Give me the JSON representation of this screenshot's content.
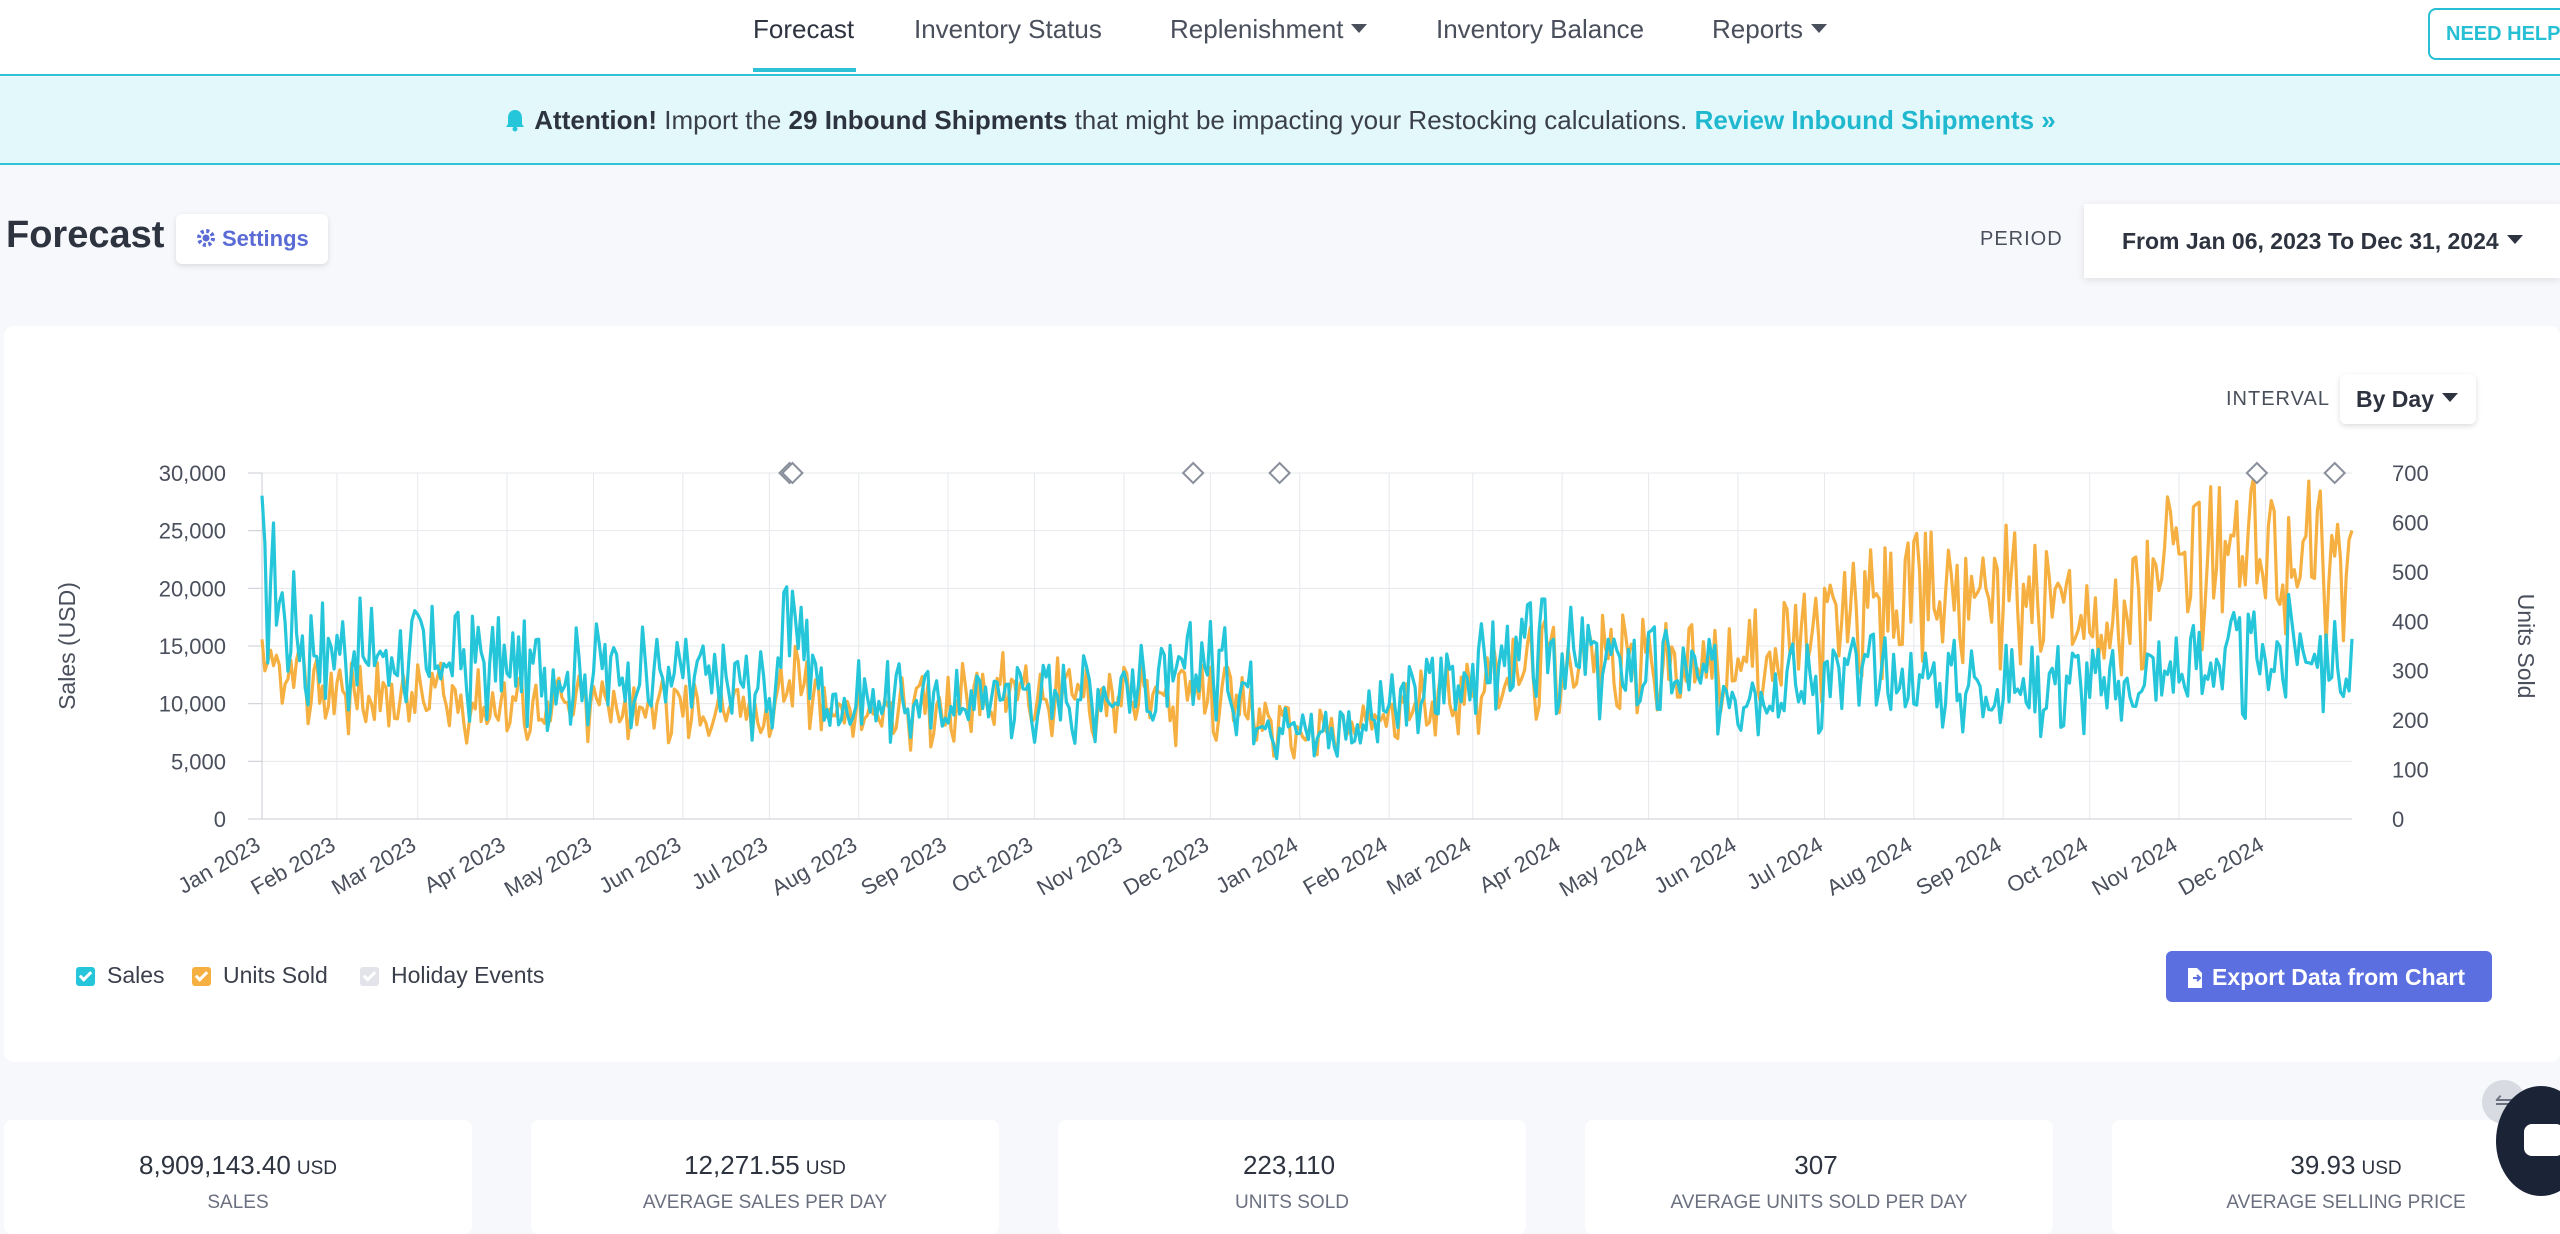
{
  "nav": {
    "items": [
      {
        "label": "Forecast",
        "dropdown": false
      },
      {
        "label": "Inventory Status",
        "dropdown": false
      },
      {
        "label": "Replenishment",
        "dropdown": true
      },
      {
        "label": "Inventory Balance",
        "dropdown": false
      },
      {
        "label": "Reports",
        "dropdown": true
      }
    ],
    "need_help": "NEED HELP?"
  },
  "banner": {
    "attention": "Attention!",
    "text1": "Import the",
    "count": "29 Inbound Shipments",
    "text2": "that might be impacting your Restocking calculations.",
    "link": "Review Inbound Shipments »",
    "icon": "bell-icon"
  },
  "header": {
    "title": "Forecast",
    "settings_label": "Settings",
    "period_label": "PERIOD",
    "period_value": "From Jan 06, 2023 To Dec 31, 2024"
  },
  "chart_controls": {
    "interval_label": "INTERVAL",
    "interval_value": "By Day"
  },
  "legend": [
    {
      "label": "Sales",
      "color": "#26c6da",
      "checked": true
    },
    {
      "label": "Units Sold",
      "color": "#f5b041",
      "checked": true
    },
    {
      "label": "Holiday Events",
      "color": "#d8dbe0",
      "checked": true
    }
  ],
  "export_label": "Export Data from Chart",
  "stats": [
    {
      "value": "8,909,143.40",
      "unit": "USD",
      "label": "SALES"
    },
    {
      "value": "12,271.55",
      "unit": "USD",
      "label": "AVERAGE SALES PER DAY"
    },
    {
      "value": "223,110",
      "unit": "",
      "label": "UNITS SOLD"
    },
    {
      "value": "307",
      "unit": "",
      "label": "AVERAGE UNITS SOLD PER DAY"
    },
    {
      "value": "39.93",
      "unit": "USD",
      "label": "AVERAGE SELLING PRICE"
    }
  ],
  "colors": {
    "accent": "#26c6da",
    "units": "#f5b041",
    "button": "#5b6fe0",
    "settings": "#5b6bd6"
  },
  "chart_data": {
    "type": "line",
    "x_start": "2023-01-06",
    "x_end": "2024-12-31",
    "x_ticks": [
      "Jan 2023",
      "Feb 2023",
      "Mar 2023",
      "Apr 2023",
      "May 2023",
      "Jun 2023",
      "Jul 2023",
      "Aug 2023",
      "Sep 2023",
      "Oct 2023",
      "Nov 2023",
      "Dec 2023",
      "Jan 2024",
      "Feb 2024",
      "Mar 2024",
      "Apr 2024",
      "May 2024",
      "Jun 2024",
      "Jul 2024",
      "Aug 2024",
      "Sep 2024",
      "Oct 2024",
      "Nov 2024",
      "Dec 2024"
    ],
    "ylabel": "Sales (USD)",
    "ylim": [
      0,
      30000
    ],
    "y_ticks": [
      "0",
      "5,000",
      "10,000",
      "15,000",
      "20,000",
      "25,000",
      "30,000"
    ],
    "y2label": "Units Sold",
    "y2lim": [
      0,
      700
    ],
    "y2_ticks": [
      "0",
      "100",
      "200",
      "300",
      "400",
      "500",
      "600",
      "700"
    ],
    "grid": true,
    "legend_position": "bottom-left",
    "holiday_events": [
      "2023-07-08",
      "2023-07-09",
      "2023-11-25",
      "2023-12-25",
      "2024-11-28",
      "2024-12-25"
    ],
    "series": [
      {
        "name": "Sales",
        "axis": "left",
        "x": [
          "2023-01-06",
          "2023-01-20",
          "2023-02-05",
          "2023-02-20",
          "2023-03-05",
          "2023-03-20",
          "2023-04-05",
          "2023-04-20",
          "2023-05-05",
          "2023-05-20",
          "2023-06-05",
          "2023-06-20",
          "2023-07-01",
          "2023-07-10",
          "2023-07-20",
          "2023-08-05",
          "2023-08-20",
          "2023-09-05",
          "2023-09-20",
          "2023-10-05",
          "2023-10-20",
          "2023-11-05",
          "2023-11-20",
          "2023-11-27",
          "2023-12-10",
          "2023-12-25",
          "2024-01-10",
          "2024-01-25",
          "2024-02-10",
          "2024-02-25",
          "2024-03-10",
          "2024-03-25",
          "2024-04-10",
          "2024-04-25",
          "2024-05-10",
          "2024-05-25",
          "2024-06-10",
          "2024-06-25",
          "2024-07-10",
          "2024-07-25",
          "2024-08-10",
          "2024-08-25",
          "2024-09-10",
          "2024-09-25",
          "2024-10-10",
          "2024-10-25",
          "2024-11-10",
          "2024-11-25",
          "2024-12-05",
          "2024-12-15",
          "2024-12-31"
        ],
        "values": [
          22000,
          15000,
          14500,
          14000,
          14000,
          13500,
          13000,
          12500,
          13000,
          12500,
          12000,
          11500,
          11000,
          18000,
          10000,
          10500,
          10000,
          10000,
          11000,
          10500,
          11000,
          11500,
          11500,
          14000,
          12000,
          8000,
          7500,
          8500,
          10500,
          12500,
          13500,
          14500,
          13500,
          13000,
          12500,
          11500,
          11500,
          12000,
          12500,
          12000,
          12000,
          11500,
          11500,
          12000,
          11000,
          12500,
          13500,
          13500,
          14000,
          15500,
          12000
        ]
      },
      {
        "name": "Units Sold",
        "axis": "right",
        "x": [
          "2023-01-06",
          "2023-01-20",
          "2023-02-05",
          "2023-02-20",
          "2023-03-05",
          "2023-03-20",
          "2023-04-05",
          "2023-04-20",
          "2023-05-05",
          "2023-05-20",
          "2023-06-05",
          "2023-06-20",
          "2023-07-01",
          "2023-07-10",
          "2023-07-20",
          "2023-08-05",
          "2023-08-20",
          "2023-09-05",
          "2023-09-20",
          "2023-10-05",
          "2023-10-20",
          "2023-11-05",
          "2023-11-20",
          "2023-11-27",
          "2023-12-10",
          "2023-12-25",
          "2024-01-10",
          "2024-01-25",
          "2024-02-10",
          "2024-02-25",
          "2024-03-10",
          "2024-03-25",
          "2024-04-10",
          "2024-04-25",
          "2024-05-10",
          "2024-05-25",
          "2024-06-10",
          "2024-06-25",
          "2024-07-10",
          "2024-07-25",
          "2024-08-10",
          "2024-08-25",
          "2024-09-10",
          "2024-09-25",
          "2024-10-10",
          "2024-10-25",
          "2024-11-10",
          "2024-11-25",
          "2024-12-05",
          "2024-12-15",
          "2024-12-31"
        ],
        "values": [
          290,
          270,
          250,
          240,
          245,
          235,
          230,
          225,
          230,
          225,
          220,
          215,
          210,
          300,
          205,
          215,
          220,
          240,
          260,
          255,
          245,
          240,
          235,
          250,
          230,
          180,
          170,
          190,
          225,
          260,
          285,
          310,
          320,
          315,
          305,
          300,
          330,
          360,
          410,
          430,
          460,
          480,
          450,
          420,
          380,
          500,
          520,
          540,
          530,
          560,
          510
        ]
      }
    ]
  }
}
